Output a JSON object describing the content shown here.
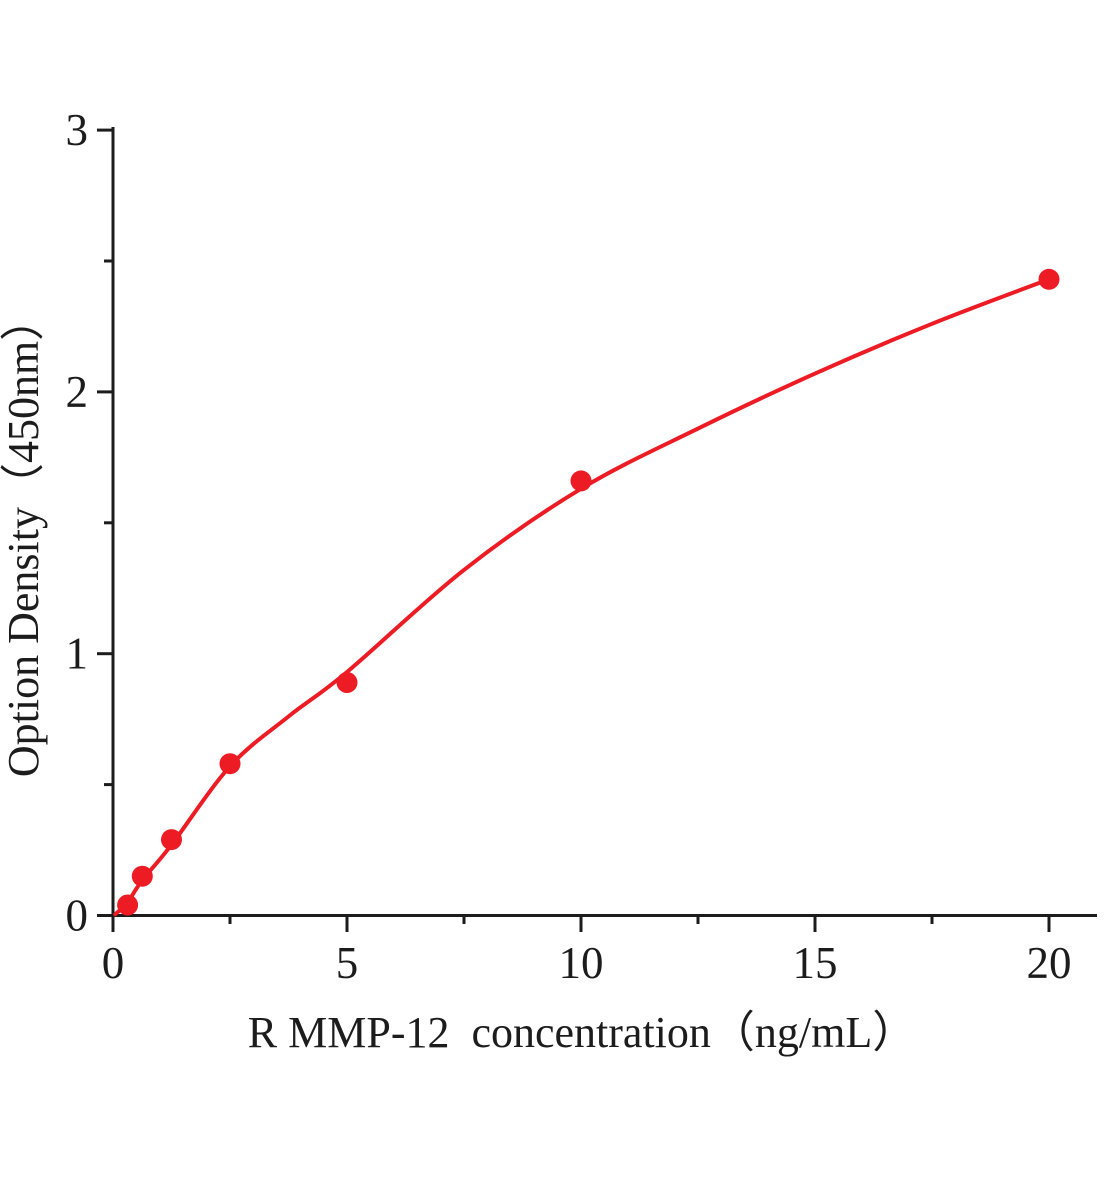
{
  "figure": {
    "background": "#ffffff"
  },
  "chart_data": {
    "type": "scatter",
    "title": "",
    "xlabel": "R MMP-12  concentration（ng/mL）",
    "ylabel": "Option Density（450nm）",
    "xlim": [
      0,
      21
    ],
    "ylim": [
      0,
      3.05
    ],
    "grid": "off",
    "legend": "none",
    "x_major_ticks": [
      0,
      5,
      10,
      15,
      20
    ],
    "x_minor_ticks": [
      2.5,
      7.5,
      12.5,
      17.5
    ],
    "y_major_ticks": [
      0,
      1,
      2,
      3
    ],
    "y_minor_ticks": [
      0.5,
      1.5,
      2.5
    ],
    "points": [
      {
        "x": 0.313,
        "y": 0.04
      },
      {
        "x": 0.625,
        "y": 0.15
      },
      {
        "x": 1.25,
        "y": 0.29
      },
      {
        "x": 2.5,
        "y": 0.58
      },
      {
        "x": 5,
        "y": 0.89
      },
      {
        "x": 10,
        "y": 1.66
      },
      {
        "x": 20,
        "y": 2.43
      }
    ],
    "fit_curve": [
      [
        0.05,
        0.005
      ],
      [
        0.31,
        0.05
      ],
      [
        0.625,
        0.135
      ],
      [
        1.25,
        0.27
      ],
      [
        2.5,
        0.57
      ],
      [
        3.75,
        0.76
      ],
      [
        5,
        0.93
      ],
      [
        7.5,
        1.32
      ],
      [
        10,
        1.63
      ],
      [
        12.5,
        1.86
      ],
      [
        15,
        2.07
      ],
      [
        17.5,
        2.26
      ],
      [
        20,
        2.43
      ]
    ],
    "colors": {
      "series": "#ed1c24",
      "axis": "#1c1c1c",
      "text": "#1c1c1c"
    }
  }
}
